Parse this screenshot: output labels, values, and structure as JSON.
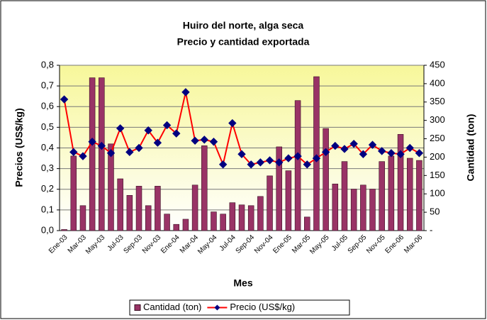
{
  "chart_data": {
    "type": "bar_line",
    "title": "Huiro del norte, alga seca",
    "subtitle": "Precio y cantidad exportada",
    "x_label": "Mes",
    "y_label": "Precios (US$/kg)",
    "y2_label": "Cantidad (ton)",
    "categories": [
      "Ene-03",
      null,
      "Mar-03",
      null,
      "May-03",
      null,
      "Jul-03",
      null,
      "Sep-03",
      null,
      "Nov-03",
      null,
      "Ene-04",
      null,
      "Mar-04",
      null,
      "May-04",
      null,
      "Jul-04",
      null,
      "Sep-04",
      null,
      "Nov-04",
      null,
      "Ene-05",
      null,
      "Mar-05",
      null,
      "May-05",
      null,
      "Jul-05",
      null,
      "Sep-05",
      null,
      "Nov-05",
      null,
      "Ene-06",
      null,
      "Mar-06"
    ],
    "series": [
      {
        "name": "Cantidad (ton)",
        "type": "bar",
        "axis": "y2",
        "color": "#993366",
        "values": [
          3,
          203,
          68,
          416,
          416,
          236,
          141,
          96,
          121,
          68,
          121,
          45,
          17,
          31,
          124,
          231,
          51,
          45,
          76,
          70,
          68,
          93,
          149,
          228,
          163,
          354,
          37,
          419,
          278,
          127,
          188,
          113,
          124,
          113,
          188,
          203,
          262,
          197,
          191
        ]
      },
      {
        "name": "Precio (US$/kg)",
        "type": "line",
        "color": "#ff0000",
        "marker_color": "#000080",
        "values": [
          0.635,
          0.38,
          0.36,
          0.43,
          0.41,
          0.375,
          0.495,
          0.38,
          0.4,
          0.485,
          0.425,
          0.51,
          0.47,
          0.67,
          0.435,
          0.44,
          0.43,
          0.32,
          0.52,
          0.37,
          0.32,
          0.33,
          0.34,
          0.33,
          0.35,
          0.36,
          0.32,
          0.35,
          0.38,
          0.41,
          0.395,
          0.42,
          0.37,
          0.415,
          0.385,
          0.375,
          0.37,
          0.4,
          0.375
        ]
      }
    ],
    "ylim": [
      0,
      0.8
    ],
    "yticks": [
      {
        "value": 0,
        "label": "0,0"
      },
      {
        "value": 0.1,
        "label": "0,1"
      },
      {
        "value": 0.2,
        "label": "0,2"
      },
      {
        "value": 0.3,
        "label": "0,3"
      },
      {
        "value": 0.4,
        "label": "0,4"
      },
      {
        "value": 0.5,
        "label": "0,5"
      },
      {
        "value": 0.6,
        "label": "0,6"
      },
      {
        "value": 0.7,
        "label": "0,7"
      },
      {
        "value": 0.8,
        "label": "0,8"
      }
    ],
    "y2lim": [
      0,
      450
    ],
    "y2ticks": [
      {
        "value": 0,
        "label": "-"
      },
      50,
      100,
      150,
      200,
      250,
      300,
      350,
      400,
      450
    ],
    "grid": true,
    "legend": "bottom"
  }
}
